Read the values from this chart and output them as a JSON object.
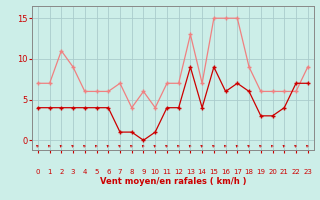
{
  "x": [
    0,
    1,
    2,
    3,
    4,
    5,
    6,
    7,
    8,
    9,
    10,
    11,
    12,
    13,
    14,
    15,
    16,
    17,
    18,
    19,
    20,
    21,
    22,
    23
  ],
  "rafales": [
    7,
    7,
    11,
    9,
    6,
    6,
    6,
    7,
    4,
    6,
    4,
    7,
    7,
    13,
    7,
    15,
    15,
    15,
    9,
    6,
    6,
    6,
    6,
    9
  ],
  "moyen": [
    4,
    4,
    4,
    4,
    4,
    4,
    4,
    1,
    1,
    0,
    1,
    4,
    4,
    9,
    4,
    9,
    6,
    7,
    6,
    3,
    3,
    4,
    7,
    7
  ],
  "bg_color": "#cceee8",
  "grid_color": "#aacccc",
  "line_color_rafales": "#f08080",
  "line_color_moyen": "#cc0000",
  "xlabel": "Vent moyen/en rafales ( km/h )",
  "xlabel_color": "#cc0000",
  "tick_color": "#cc0000",
  "ylim": [
    -1.2,
    16.5
  ],
  "yticks": [
    0,
    5,
    10,
    15
  ],
  "spine_color": "#888888"
}
